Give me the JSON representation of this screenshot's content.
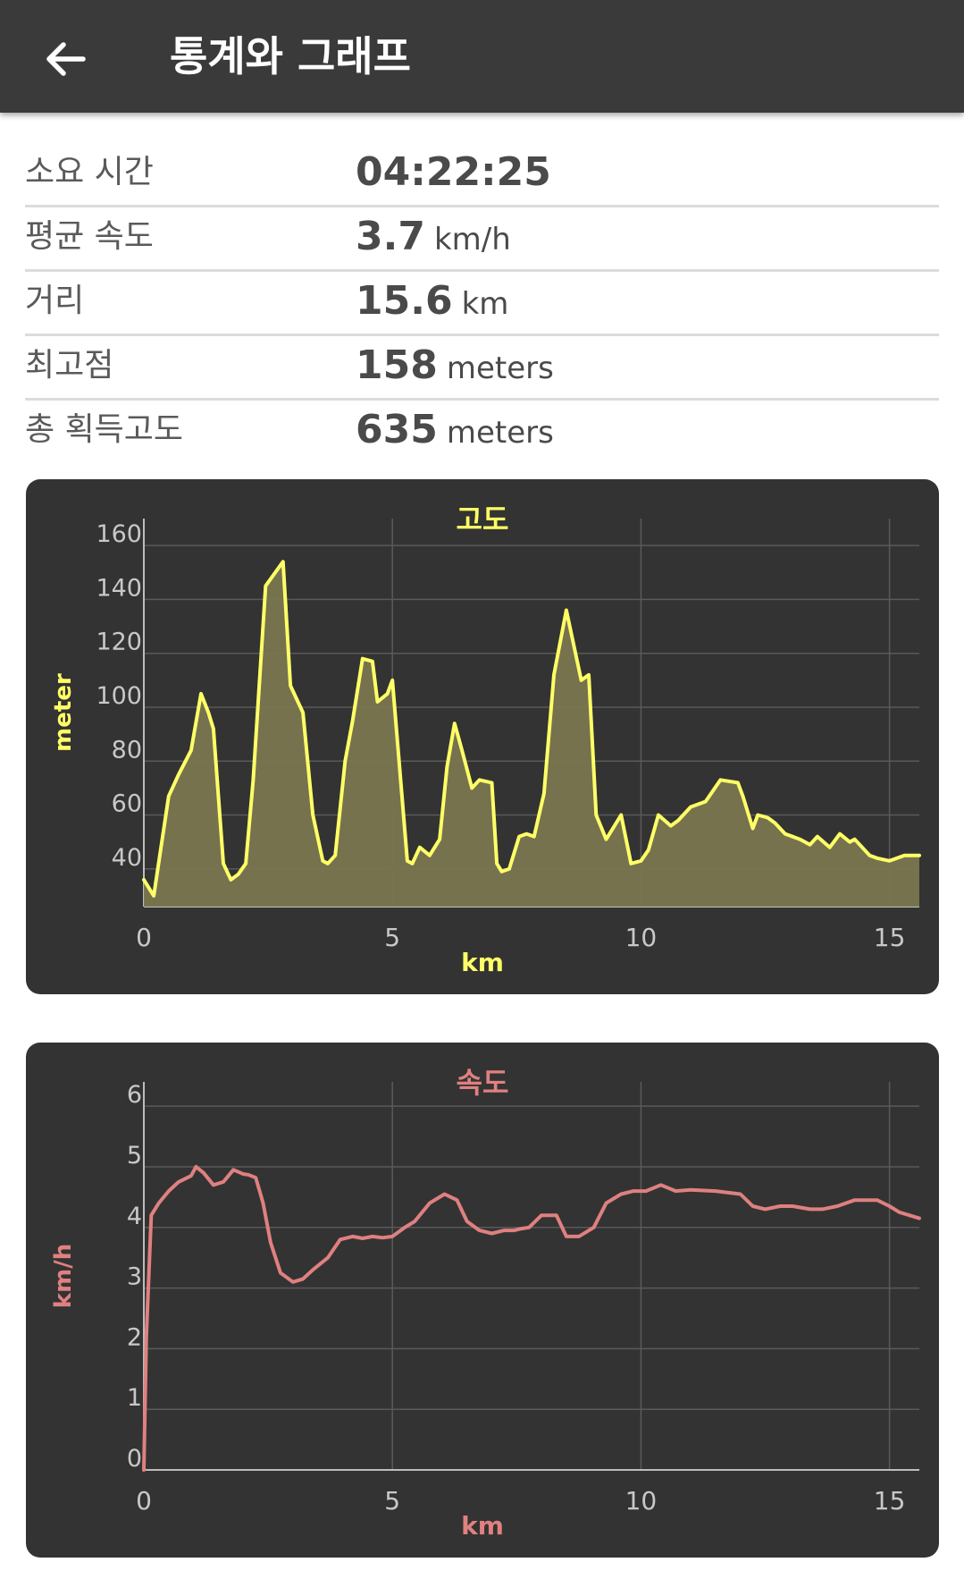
{
  "appbar": {
    "back_icon": "arrow-left-icon",
    "title": "통계와 그래프"
  },
  "stats": [
    {
      "label": "소요 시간",
      "value": "04:22:25",
      "unit": ""
    },
    {
      "label": "평균 속도",
      "value": "3.7",
      "unit": "km/h"
    },
    {
      "label": "거리",
      "value": "15.6",
      "unit": "km"
    },
    {
      "label": "최고점",
      "value": "158",
      "unit": "meters"
    },
    {
      "label": "총 획득고도",
      "value": "635",
      "unit": "meters"
    }
  ],
  "colors": {
    "appbar_bg": "#3a3a3a",
    "chart_bg": "#333333",
    "elevation_line": "#ffff66",
    "elevation_fill": "#7a7650",
    "speed_line": "#e08080"
  },
  "chart_data": [
    {
      "type": "area",
      "title": "고도",
      "xlabel": "km",
      "ylabel": "meter",
      "xlim": [
        0,
        15.6
      ],
      "ylim": [
        26,
        170
      ],
      "xticks": [
        "0",
        "5",
        "10",
        "15"
      ],
      "yticks": [
        "40",
        "60",
        "80",
        "100",
        "120",
        "140",
        "160"
      ],
      "grid": true,
      "x": [
        0,
        0.2,
        0.5,
        0.7,
        0.95,
        1.15,
        1.3,
        1.4,
        1.6,
        1.75,
        1.9,
        2.05,
        2.2,
        2.45,
        2.8,
        2.95,
        3.2,
        3.4,
        3.6,
        3.7,
        3.85,
        4.05,
        4.2,
        4.4,
        4.6,
        4.7,
        4.9,
        5.0,
        5.3,
        5.4,
        5.55,
        5.75,
        5.95,
        6.1,
        6.25,
        6.4,
        6.6,
        6.75,
        7.0,
        7.1,
        7.2,
        7.35,
        7.55,
        7.7,
        7.85,
        8.05,
        8.25,
        8.5,
        8.8,
        8.95,
        9.1,
        9.3,
        9.6,
        9.8,
        10.0,
        10.15,
        10.35,
        10.6,
        10.75,
        10.9,
        11.0,
        11.3,
        11.6,
        11.95,
        12.05,
        12.25,
        12.35,
        12.55,
        12.7,
        12.9,
        13.2,
        13.4,
        13.55,
        13.8,
        14.0,
        14.2,
        14.3,
        14.5,
        14.6,
        14.75,
        15.0,
        15.15,
        15.3,
        15.6
      ],
      "values": [
        36,
        30,
        67,
        75,
        84,
        105,
        98,
        92,
        42,
        36,
        38,
        42,
        73,
        145,
        154,
        108,
        98,
        60,
        43,
        42,
        45,
        80,
        95,
        118,
        117,
        102,
        105,
        110,
        43,
        42,
        48,
        45,
        51,
        78,
        94,
        84,
        70,
        73,
        72,
        42,
        39,
        40,
        52,
        53,
        52,
        68,
        112,
        136,
        110,
        112,
        60,
        51,
        60,
        42,
        43,
        47,
        60,
        56,
        58,
        61,
        63,
        65,
        73,
        72,
        67,
        55,
        60,
        59,
        57,
        53,
        51,
        49,
        52,
        48,
        53,
        50,
        51,
        47,
        45,
        44,
        43,
        44,
        45,
        45
      ],
      "fill": true
    },
    {
      "type": "line",
      "title": "속도",
      "xlabel": "km",
      "ylabel": "km/h",
      "xlim": [
        0,
        15.6
      ],
      "ylim": [
        0,
        6.4
      ],
      "xticks": [
        "0",
        "5",
        "10",
        "15"
      ],
      "yticks": [
        "0",
        "1",
        "2",
        "3",
        "4",
        "5",
        "6"
      ],
      "grid": true,
      "x": [
        0,
        0.05,
        0.15,
        0.3,
        0.5,
        0.7,
        0.95,
        1.05,
        1.2,
        1.4,
        1.6,
        1.8,
        2.0,
        2.1,
        2.25,
        2.4,
        2.55,
        2.75,
        3.0,
        3.2,
        3.4,
        3.7,
        3.95,
        4.2,
        4.4,
        4.6,
        4.8,
        5.0,
        5.25,
        5.45,
        5.75,
        6.05,
        6.3,
        6.5,
        6.75,
        7.0,
        7.25,
        7.45,
        7.6,
        7.75,
        8.0,
        8.3,
        8.5,
        8.75,
        9.05,
        9.3,
        9.6,
        9.85,
        10.1,
        10.4,
        10.7,
        11.0,
        11.5,
        12.0,
        12.25,
        12.5,
        12.8,
        13.05,
        13.4,
        13.65,
        13.95,
        14.3,
        14.75,
        15.0,
        15.2,
        15.6
      ],
      "values": [
        0,
        2.2,
        4.2,
        4.4,
        4.6,
        4.75,
        4.85,
        5.0,
        4.9,
        4.7,
        4.75,
        4.95,
        4.88,
        4.87,
        4.82,
        4.4,
        3.75,
        3.25,
        3.1,
        3.15,
        3.3,
        3.5,
        3.8,
        3.85,
        3.82,
        3.85,
        3.83,
        3.85,
        4.0,
        4.1,
        4.4,
        4.55,
        4.45,
        4.1,
        3.95,
        3.9,
        3.95,
        3.95,
        3.98,
        4.0,
        4.2,
        4.2,
        3.85,
        3.85,
        4.0,
        4.4,
        4.55,
        4.6,
        4.6,
        4.7,
        4.6,
        4.62,
        4.6,
        4.55,
        4.35,
        4.3,
        4.35,
        4.35,
        4.3,
        4.3,
        4.35,
        4.45,
        4.45,
        4.35,
        4.25,
        4.15
      ]
    }
  ]
}
